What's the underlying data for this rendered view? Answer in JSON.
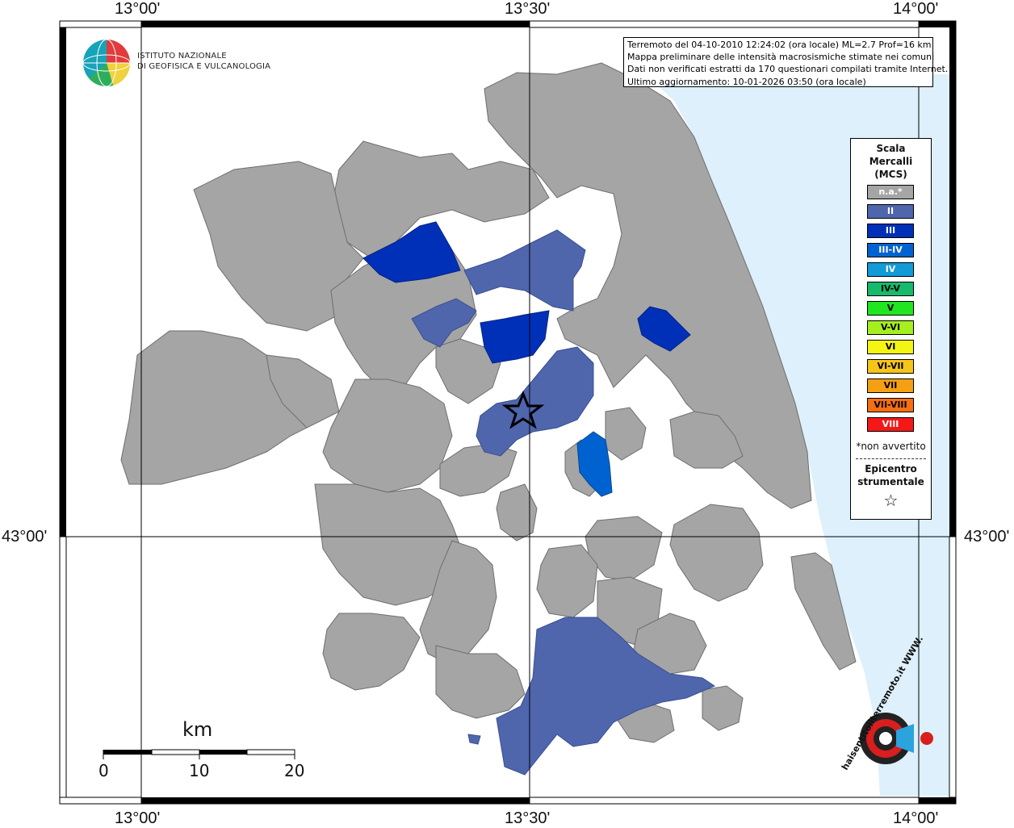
{
  "axes": {
    "top": [
      "13°00'",
      "13°30'",
      "14°00'"
    ],
    "bottom": [
      "13°00'",
      "13°30'",
      "14°00'"
    ],
    "left": "43°00'",
    "right": "43°00'"
  },
  "institute": {
    "name_line1": "ISTITUTO NAZIONALE",
    "name_line2": "DI GEOFISICA E VULCANOLOGIA"
  },
  "info": {
    "line1": "Terremoto del 04-10-2010 12:24:02 (ora locale) ML=2.7 Prof=16 km",
    "line2": "Mappa preliminare delle intensità macrosismiche stimate nei comuni",
    "line3": "Dati non verificati estratti da 170 questionari compilati tramite Internet.",
    "line4": "Ultimo aggiornamento: 10-01-2026 03:50 (ora locale)"
  },
  "legend": {
    "title_lines": [
      "Scala",
      "Mercalli",
      "(MCS)"
    ],
    "items": [
      {
        "label": "n.a.*",
        "color": "#a5a5a5",
        "text_color": "#ffffff"
      },
      {
        "label": "II",
        "color": "#4f66ad",
        "text_color": "#ffffff"
      },
      {
        "label": "III",
        "color": "#0030b8",
        "text_color": "#ffffff"
      },
      {
        "label": "III-IV",
        "color": "#0062d0",
        "text_color": "#ffffff"
      },
      {
        "label": "IV",
        "color": "#139bd8",
        "text_color": "#ffffff"
      },
      {
        "label": "IV-V",
        "color": "#17b96a",
        "text_color": "#000000"
      },
      {
        "label": "V",
        "color": "#1fe61f",
        "text_color": "#000000"
      },
      {
        "label": "V-VI",
        "color": "#a6ee1e",
        "text_color": "#000000"
      },
      {
        "label": "VI",
        "color": "#f5f514",
        "text_color": "#000000"
      },
      {
        "label": "VI-VII",
        "color": "#f5c518",
        "text_color": "#000000"
      },
      {
        "label": "VII",
        "color": "#f59f12",
        "text_color": "#000000"
      },
      {
        "label": "VII-VIII",
        "color": "#f56e12",
        "text_color": "#000000"
      },
      {
        "label": "VIII",
        "color": "#f51818",
        "text_color": "#ffffff"
      }
    ],
    "note": "*non avvertito",
    "epicenter_lines": [
      "Epicentro",
      "strumentale"
    ],
    "epicenter_symbol": "☆"
  },
  "scale_bar": {
    "unit": "km",
    "ticks": [
      "0",
      "10",
      "20"
    ]
  },
  "colors": {
    "sea": "#ddf0fc",
    "land_na": "#a5a5a5",
    "mcs_ii": "#4f66ad",
    "mcs_iii": "#0030b8",
    "mcs_iii_iv": "#0062d0"
  },
  "watermark_text": "haisentitoilterremoto.it WWW."
}
